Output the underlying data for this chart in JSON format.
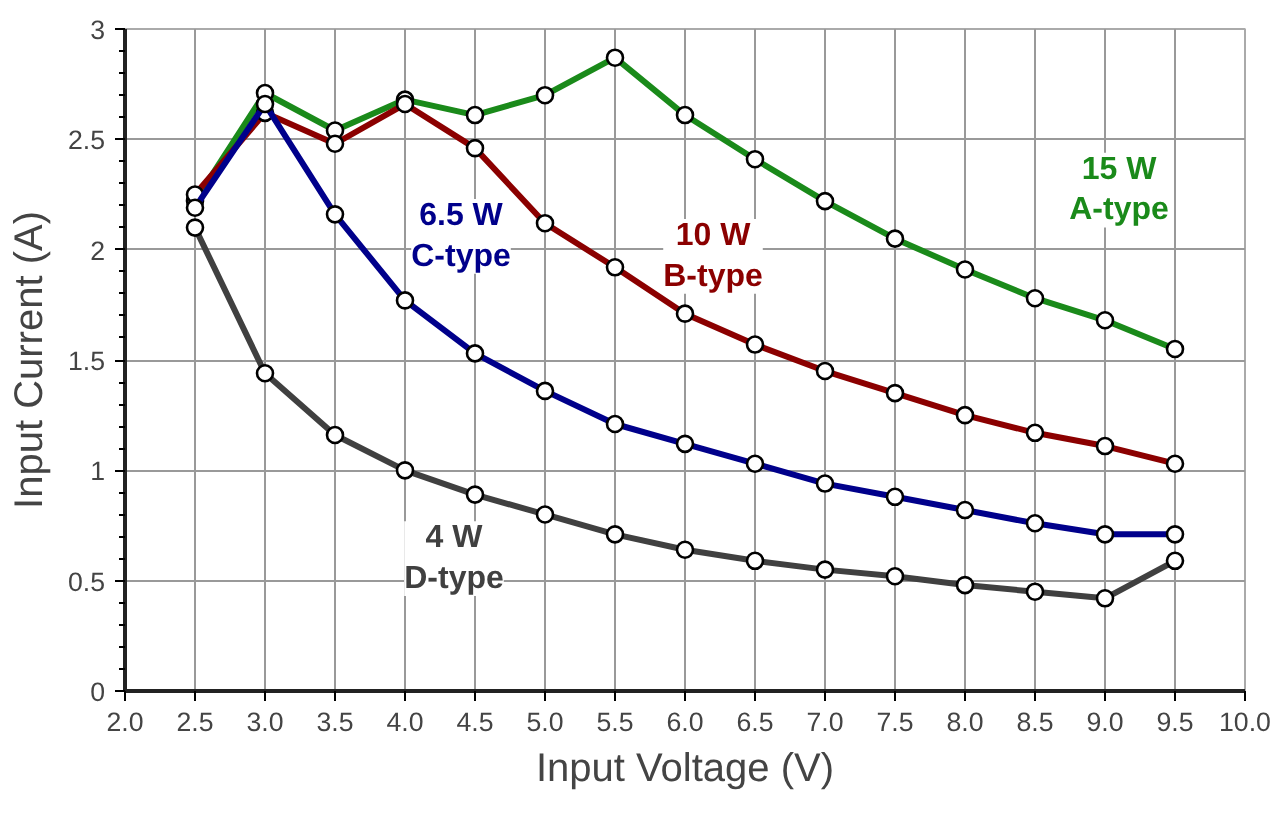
{
  "chart_data": {
    "type": "line",
    "xlabel": "Input Voltage (V)",
    "ylabel": "Input Current (A)",
    "x": [
      2.5,
      3.0,
      3.5,
      4.0,
      4.5,
      5.0,
      5.5,
      6.0,
      6.5,
      7.0,
      7.5,
      8.0,
      8.5,
      9.0,
      9.5
    ],
    "series": [
      {
        "name": "15 W\nA-type",
        "color": "#1a8a1a",
        "values": [
          2.22,
          2.71,
          2.54,
          2.68,
          2.61,
          2.7,
          2.87,
          2.61,
          2.41,
          2.22,
          2.05,
          1.91,
          1.78,
          1.68,
          1.55
        ]
      },
      {
        "name": "10 W\nB-type",
        "color": "#8b0000",
        "values": [
          2.25,
          2.62,
          2.48,
          2.66,
          2.46,
          2.12,
          1.92,
          1.71,
          1.57,
          1.45,
          1.35,
          1.25,
          1.17,
          1.11,
          1.03
        ]
      },
      {
        "name": "6.5 W\nC-type",
        "color": "#00008b",
        "values": [
          2.19,
          2.66,
          2.16,
          1.77,
          1.53,
          1.36,
          1.21,
          1.12,
          1.03,
          0.94,
          0.88,
          0.82,
          0.76,
          0.71,
          0.71
        ]
      },
      {
        "name": "4 W\nD-type",
        "color": "#404040",
        "values": [
          2.1,
          1.44,
          1.16,
          1.0,
          0.89,
          0.8,
          0.71,
          0.64,
          0.59,
          0.55,
          0.52,
          0.48,
          0.45,
          0.42,
          0.59
        ]
      }
    ],
    "xlim": [
      2.0,
      10.0
    ],
    "xticks": [
      {
        "value": 2.0,
        "label": "2.0"
      },
      {
        "value": 2.5,
        "label": "2.5"
      },
      {
        "value": 3.0,
        "label": "3.0"
      },
      {
        "value": 3.5,
        "label": "3.5"
      },
      {
        "value": 4.0,
        "label": "4.0"
      },
      {
        "value": 4.5,
        "label": "4.5"
      },
      {
        "value": 5.0,
        "label": "5.0"
      },
      {
        "value": 5.5,
        "label": "5.5"
      },
      {
        "value": 6.0,
        "label": "6.0"
      },
      {
        "value": 6.5,
        "label": "6.5"
      },
      {
        "value": 7.0,
        "label": "7.0"
      },
      {
        "value": 7.5,
        "label": "7.5"
      },
      {
        "value": 8.0,
        "label": "8.0"
      },
      {
        "value": 8.5,
        "label": "8.5"
      },
      {
        "value": 9.0,
        "label": "9.0"
      },
      {
        "value": 9.5,
        "label": "9.5"
      },
      {
        "value": 10.0,
        "label": "10.0"
      }
    ],
    "ylim": [
      0,
      3
    ],
    "yticks": [
      0,
      0.5,
      1,
      1.5,
      2,
      2.5,
      3
    ],
    "grid": true,
    "marker": "circle",
    "line_style": "solid"
  }
}
